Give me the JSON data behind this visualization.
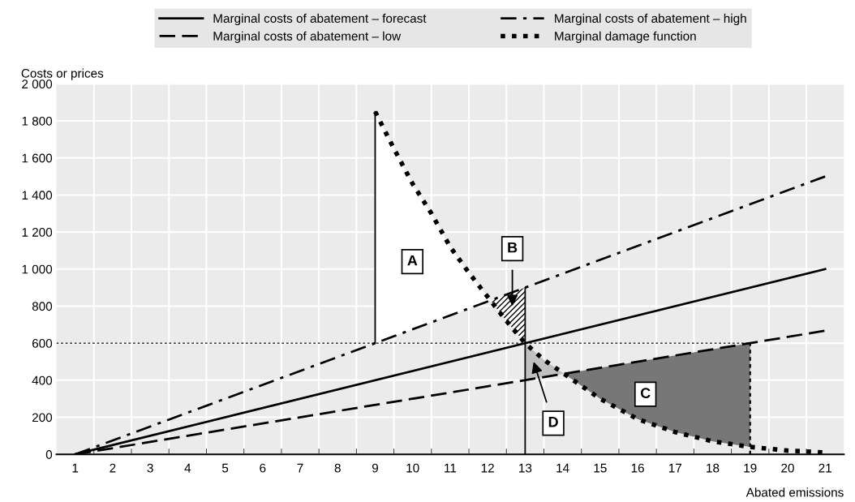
{
  "chart_data": {
    "type": "line",
    "xlabel": "Abated emissions",
    "ylabel": "Costs or prices",
    "xlim": [
      0.5,
      21.5
    ],
    "ylim": [
      0,
      2000
    ],
    "xticks": [
      1,
      2,
      3,
      4,
      5,
      6,
      7,
      8,
      9,
      10,
      11,
      12,
      13,
      14,
      15,
      16,
      17,
      18,
      19,
      20,
      21,
      {
        "value": 1.5,
        "label": null
      },
      {
        "value": 2.5,
        "label": null
      },
      {
        "value": 3.5,
        "label": null
      },
      {
        "value": 4.5,
        "label": null
      },
      {
        "value": 5.5,
        "label": null
      },
      {
        "value": 6.5,
        "label": null
      },
      {
        "value": 7.5,
        "label": null
      },
      {
        "value": 8.5,
        "label": null
      },
      {
        "value": 9.5,
        "label": null
      },
      {
        "value": 10.5,
        "label": null
      },
      {
        "value": 11.5,
        "label": null
      },
      {
        "value": 12.5,
        "label": null
      },
      {
        "value": 13.5,
        "label": null
      },
      {
        "value": 14.5,
        "label": null
      },
      {
        "value": 15.5,
        "label": null
      },
      {
        "value": 16.5,
        "label": null
      },
      {
        "value": 17.5,
        "label": null
      },
      {
        "value": 18.5,
        "label": null
      },
      {
        "value": 19.5,
        "label": null
      },
      {
        "value": 20.5,
        "label": null
      }
    ],
    "yticks": [
      0,
      200,
      400,
      600,
      800,
      {
        "value": 1000,
        "label": "1 000"
      },
      {
        "value": 1200,
        "label": "1 200"
      },
      {
        "value": 1400,
        "label": "1 400"
      },
      {
        "value": 1600,
        "label": "1 600"
      },
      {
        "value": 1800,
        "label": "1 800"
      },
      {
        "value": 2000,
        "label": "2 000"
      }
    ],
    "grid": true,
    "legend": "top",
    "marker": "none",
    "series": [
      {
        "color": "#000000",
        "line_style": "dotted",
        "x": [
          0.5,
          19
        ],
        "values": [
          600,
          600
        ]
      },
      {
        "color": "#000000",
        "line_style": "dotted",
        "x": [
          19,
          19
        ],
        "values": [
          0,
          600
        ]
      },
      {
        "color": "#000000",
        "line_style": "solid",
        "x": [
          9,
          9
        ],
        "values": [
          600,
          1850
        ]
      },
      {
        "color": "#000000",
        "line_style": "solid",
        "x": [
          13,
          13
        ],
        "values": [
          0,
          900
        ]
      },
      {
        "name": "Marginal costs of abatement – forecast",
        "color": "#000000",
        "line_style": "solid",
        "x": [
          1,
          21
        ],
        "values": [
          0,
          1000
        ]
      },
      {
        "name": "Marginal costs of abatement – low",
        "color": "#000000",
        "line_style": "dashed",
        "x": [
          1,
          21
        ],
        "values": [
          0,
          667
        ]
      },
      {
        "name": "Marginal costs of abatement – high",
        "color": "#000000",
        "line_style": "dashdot",
        "x": [
          1,
          21
        ],
        "values": [
          0,
          1500
        ]
      },
      {
        "name": "Marginal damage function",
        "color": "#000000",
        "line_style": "dotted",
        "x": [
          9,
          9.5,
          10,
          10.5,
          11,
          11.5,
          12,
          12.5,
          13,
          13.5,
          14,
          15,
          16,
          17,
          18,
          19,
          20,
          21
        ],
        "values": [
          1850,
          1650,
          1460,
          1300,
          1120,
          980,
          850,
          720,
          600,
          510,
          440,
          300,
          190,
          120,
          70,
          40,
          20,
          10
        ]
      }
    ],
    "annotations": [
      "A",
      "B",
      "C",
      "D"
    ]
  }
}
